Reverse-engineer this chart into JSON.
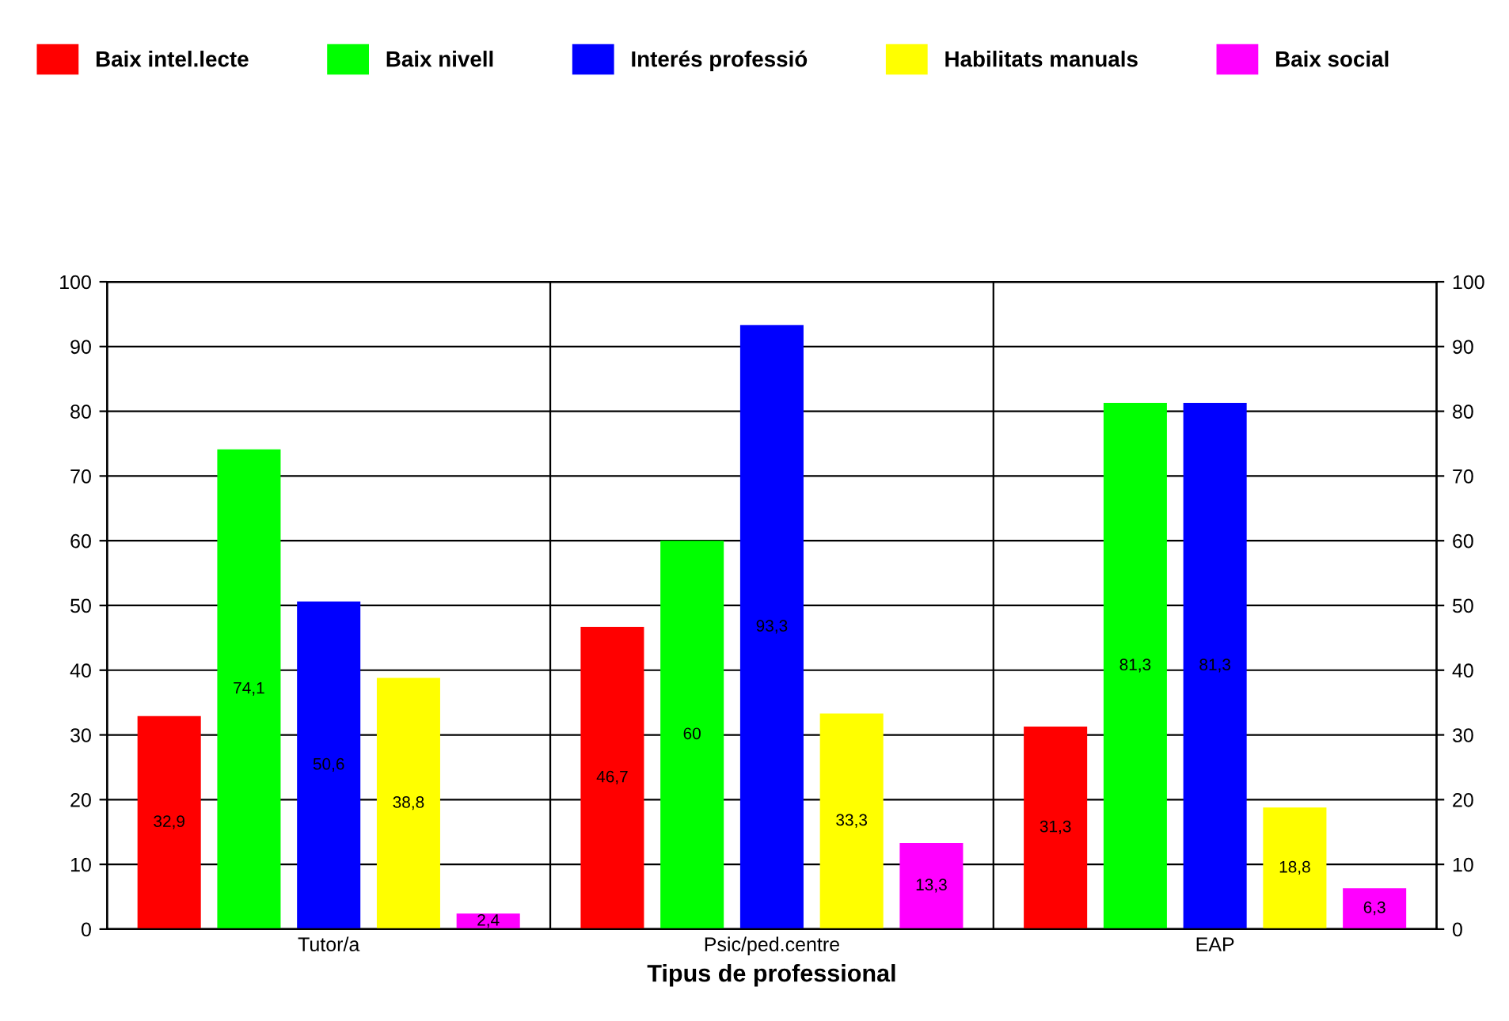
{
  "chart_data": {
    "type": "bar",
    "xlabel": "Tipus de professional",
    "categories": [
      "Tutor/a",
      "Psic/ped.centre",
      "EAP"
    ],
    "series": [
      {
        "name": "Baix intel.lecte",
        "color": "#ff0000",
        "values": [
          32.9,
          46.7,
          31.3
        ],
        "value_labels": [
          "32,9",
          "46,7",
          "31,3"
        ]
      },
      {
        "name": "Baix nivell",
        "color": "#00ff00",
        "values": [
          74.1,
          60,
          81.3
        ],
        "value_labels": [
          "74,1",
          "60",
          "81,3"
        ]
      },
      {
        "name": "Interés professió",
        "color": "#0000ff",
        "values": [
          50.6,
          93.3,
          81.3
        ],
        "value_labels": [
          "50,6",
          "93,3",
          "81,3"
        ]
      },
      {
        "name": "Habilitats manuals",
        "color": "#ffff00",
        "values": [
          38.8,
          33.3,
          18.8
        ],
        "value_labels": [
          "38,8",
          "33,3",
          "18,8"
        ]
      },
      {
        "name": "Baix social",
        "color": "#ff00ff",
        "values": [
          2.4,
          13.3,
          6.3
        ],
        "value_labels": [
          "2,4",
          "13,3",
          "6,3"
        ]
      }
    ],
    "ylim": [
      0,
      100
    ],
    "yticks": [
      0,
      10,
      20,
      30,
      40,
      50,
      60,
      70,
      80,
      90,
      100
    ],
    "y2lim": [
      0,
      100
    ],
    "y2ticks": [
      0,
      10,
      20,
      30,
      40,
      50,
      60,
      70,
      80,
      90,
      100
    ],
    "grid": true,
    "legend": "top"
  }
}
